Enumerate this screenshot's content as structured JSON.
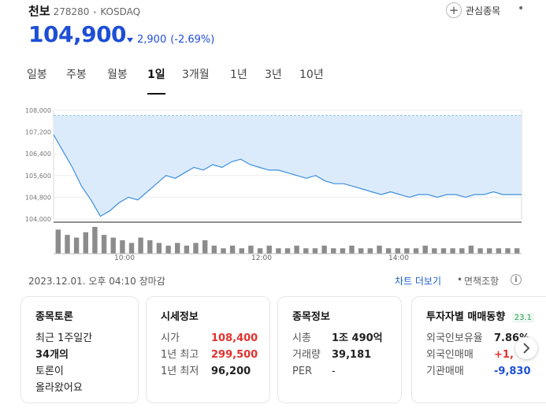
{
  "stock": {
    "name": "천보",
    "code": "278280",
    "market": "KOSDAQ",
    "price": "104,900",
    "change": "2,900",
    "change_pct": "(-2.69%)",
    "direction": "down"
  },
  "actions": {
    "favorite_label": "관심종목",
    "more_label": "•"
  },
  "tabs": [
    {
      "label": "일봉"
    },
    {
      "label": "주봉"
    },
    {
      "label": "월봉"
    },
    {
      "label": "1일",
      "active": true
    },
    {
      "label": "3개월"
    },
    {
      "label": "1년"
    },
    {
      "label": "3년"
    },
    {
      "label": "10년"
    }
  ],
  "chart_data": {
    "type": "area",
    "y_ticks": [
      "108,000",
      "107,200",
      "106,400",
      "105,600",
      "104,800",
      "104,000"
    ],
    "ylim": [
      104000,
      108000
    ],
    "x_ticks": [
      "10:00",
      "12:00",
      "14:00"
    ],
    "previous_close": 107800,
    "price_series": [
      107100,
      106500,
      105900,
      105200,
      104700,
      104100,
      104300,
      104600,
      104800,
      104700,
      105000,
      105300,
      105600,
      105500,
      105700,
      105900,
      105800,
      106000,
      105900,
      106100,
      106200,
      106000,
      105900,
      105800,
      105800,
      105700,
      105600,
      105500,
      105600,
      105400,
      105300,
      105300,
      105200,
      105100,
      105000,
      104900,
      105000,
      104900,
      104800,
      104900,
      104900,
      104800,
      104900,
      104900,
      104800,
      104900,
      104900,
      105000,
      104900,
      104900,
      104900
    ],
    "volume_series": [
      9,
      7,
      6,
      8,
      10,
      7,
      6,
      5,
      4,
      6,
      5,
      4,
      3,
      4,
      3,
      4,
      5,
      3,
      2,
      3,
      2,
      3,
      2,
      3,
      2,
      2,
      3,
      2,
      2,
      3,
      2,
      2,
      3,
      2,
      2,
      3,
      2,
      2,
      2,
      2,
      3,
      2,
      2,
      2,
      2,
      3,
      2,
      2,
      2,
      2,
      2
    ],
    "colors": {
      "line": "#3b8fe0",
      "fill": "#dcebfb",
      "volume": "#8c8c8c",
      "ref_line": "#3b8fe0"
    }
  },
  "status": {
    "datetime": "2023.12.01. 오후 04:10 장마감",
    "chart_more": "차트 더보기",
    "sep": "•",
    "condition": "면책조항",
    "info": "i"
  },
  "cards": {
    "discussion": {
      "title": "종목토론",
      "lines": [
        "최근 1주일간",
        "34개의",
        "토론이",
        "올라왔어요"
      ]
    },
    "quote": {
      "title": "시세정보",
      "rows": [
        {
          "k": "시가",
          "v": "108,400"
        },
        {
          "k": "1년 최고",
          "v": "299,500"
        },
        {
          "k": "1년 최저",
          "v": "96,200"
        }
      ]
    },
    "stockinfo": {
      "title": "종목정보",
      "rows": [
        {
          "k": "시총",
          "v": "1조 490억"
        },
        {
          "k": "거래량",
          "v": "39,181"
        },
        {
          "k": "PER",
          "v": "-"
        }
      ]
    },
    "investor": {
      "title": "투자자별 매매동향",
      "date": "23.1",
      "rows": [
        {
          "k": "외국인보유율",
          "v": "7.86%"
        },
        {
          "k": "외국인매매",
          "v": "+1,"
        },
        {
          "k": "기관매매",
          "v": "-9,830"
        }
      ]
    }
  }
}
